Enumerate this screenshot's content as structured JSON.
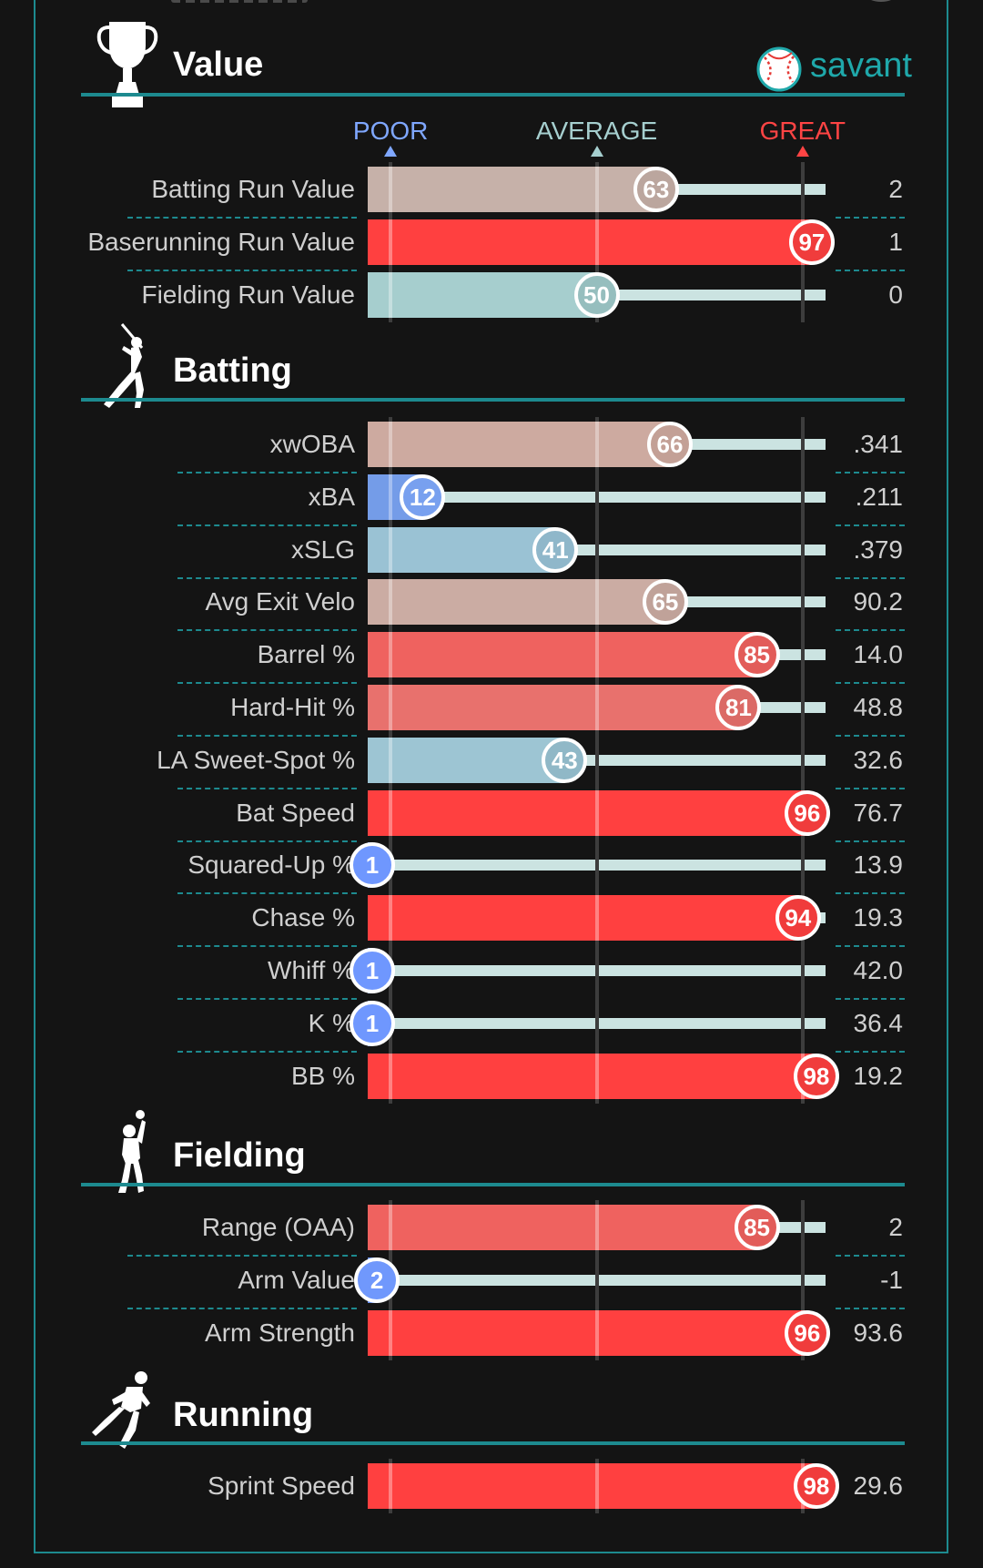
{
  "brand": {
    "logo_text": "savant",
    "accent": "#1fa8aa",
    "rule_color": "#1d8a8f"
  },
  "legend": [
    {
      "label": "POOR",
      "percentile": 5,
      "color": "#7fa7ff"
    },
    {
      "label": "AVERAGE",
      "percentile": 50,
      "color": "#a6cfcf"
    },
    {
      "label": "GREAT",
      "percentile": 95,
      "color": "#ff4444"
    }
  ],
  "sections": [
    {
      "id": "value",
      "title": "Value",
      "icon": "trophy-icon",
      "rows": [
        {
          "label": "Batting Run Value",
          "percentile": 63,
          "value": "2"
        },
        {
          "label": "Baserunning Run Value",
          "percentile": 97,
          "value": "1"
        },
        {
          "label": "Fielding Run Value",
          "percentile": 50,
          "value": "0"
        }
      ]
    },
    {
      "id": "batting",
      "title": "Batting",
      "icon": "batter-icon",
      "rows": [
        {
          "label": "xwOBA",
          "percentile": 66,
          "value": ".341"
        },
        {
          "label": "xBA",
          "percentile": 12,
          "value": ".211"
        },
        {
          "label": "xSLG",
          "percentile": 41,
          "value": ".379"
        },
        {
          "label": "Avg Exit Velo",
          "percentile": 65,
          "value": "90.2"
        },
        {
          "label": "Barrel %",
          "percentile": 85,
          "value": "14.0"
        },
        {
          "label": "Hard-Hit %",
          "percentile": 81,
          "value": "48.8"
        },
        {
          "label": "LA Sweet-Spot %",
          "percentile": 43,
          "value": "32.6"
        },
        {
          "label": "Bat Speed",
          "percentile": 96,
          "value": "76.7"
        },
        {
          "label": "Squared-Up %",
          "percentile": 1,
          "value": "13.9"
        },
        {
          "label": "Chase %",
          "percentile": 94,
          "value": "19.3"
        },
        {
          "label": "Whiff %",
          "percentile": 1,
          "value": "42.0"
        },
        {
          "label": "K %",
          "percentile": 1,
          "value": "36.4"
        },
        {
          "label": "BB %",
          "percentile": 98,
          "value": "19.2"
        }
      ]
    },
    {
      "id": "fielding",
      "title": "Fielding",
      "icon": "fielder-icon",
      "rows": [
        {
          "label": "Range (OAA)",
          "percentile": 85,
          "value": "2"
        },
        {
          "label": "Arm Value",
          "percentile": 2,
          "value": "-1"
        },
        {
          "label": "Arm Strength",
          "percentile": 96,
          "value": "93.6"
        }
      ]
    },
    {
      "id": "running",
      "title": "Running",
      "icon": "runner-icon",
      "rows": [
        {
          "label": "Sprint Speed",
          "percentile": 98,
          "value": "29.6"
        }
      ]
    }
  ],
  "chart_data": {
    "type": "bar",
    "orientation": "horizontal",
    "x_range": [
      0,
      100
    ],
    "reference_percentiles": {
      "POOR": 5,
      "AVERAGE": 50,
      "GREAT": 95
    },
    "categories": [
      "Batting Run Value",
      "Baserunning Run Value",
      "Fielding Run Value",
      "xwOBA",
      "xBA",
      "xSLG",
      "Avg Exit Velo",
      "Barrel %",
      "Hard-Hit %",
      "LA Sweet-Spot %",
      "Bat Speed",
      "Squared-Up %",
      "Chase %",
      "Whiff %",
      "K %",
      "BB %",
      "Range (OAA)",
      "Arm Value",
      "Arm Strength",
      "Sprint Speed"
    ],
    "percentiles": [
      63,
      97,
      50,
      66,
      12,
      41,
      65,
      85,
      81,
      43,
      96,
      1,
      94,
      1,
      1,
      98,
      85,
      2,
      96,
      98
    ],
    "stat_values": [
      "2",
      "1",
      "0",
      ".341",
      ".211",
      ".379",
      "90.2",
      "14.0",
      "48.8",
      "32.6",
      "76.7",
      "13.9",
      "19.3",
      "42.0",
      "36.4",
      "19.2",
      "2",
      "-1",
      "93.6",
      "29.6"
    ]
  }
}
